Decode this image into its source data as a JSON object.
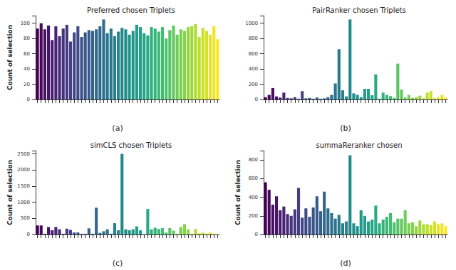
{
  "chart_data": [
    {
      "type": "bar",
      "title": "Preferred chosen Triplets",
      "subtitle": "(a)",
      "ylabel": "Count of selection",
      "categories": [
        null,
        null,
        null,
        null,
        null,
        null,
        null,
        null,
        null,
        null,
        null,
        null,
        null,
        null,
        null,
        null,
        null,
        null,
        null,
        null,
        null,
        null,
        null,
        null,
        null,
        null,
        null,
        null,
        null,
        null,
        null,
        null,
        null,
        null,
        null,
        null,
        null,
        null,
        null,
        null,
        null,
        null,
        null,
        null,
        null,
        null,
        null,
        null,
        null,
        null
      ],
      "values": [
        93,
        100,
        92,
        97,
        78,
        96,
        83,
        93,
        98,
        76,
        88,
        96,
        82,
        88,
        91,
        90,
        92,
        96,
        105,
        87,
        93,
        83,
        89,
        94,
        92,
        85,
        90,
        98,
        95,
        87,
        84,
        95,
        93,
        89,
        95,
        80,
        91,
        97,
        85,
        92,
        90,
        95,
        96,
        99,
        82,
        94,
        90,
        85,
        96,
        79
      ],
      "colors": [
        "#440154",
        "#45085b",
        "#460f62",
        "#461668",
        "#471e6f",
        "#482575",
        "#462b79",
        "#45327d",
        "#443880",
        "#423f84",
        "#404587",
        "#3e4b88",
        "#3c508a",
        "#39568b",
        "#375b8c",
        "#34608d",
        "#32668d",
        "#306b8d",
        "#2e708e",
        "#2b758e",
        "#297a8e",
        "#277f8d",
        "#26848d",
        "#24898d",
        "#228e8c",
        "#21938b",
        "#219889",
        "#229d88",
        "#22a186",
        "#22a685",
        "#26ab82",
        "#2db07e",
        "#34b479",
        "#3bb975",
        "#42be71",
        "#4cc26c",
        "#57c565",
        "#62c95f",
        "#6dcd59",
        "#78d052",
        "#85d34a",
        "#93d641",
        "#a0d938",
        "#aedc30",
        "#bcdf27",
        "#c9e026",
        "#d6e226",
        "#e3e425",
        "#f0e525",
        "#fde725"
      ],
      "ylim": [
        0,
        110
      ],
      "yticks": [
        0,
        20,
        40,
        60,
        80,
        100
      ],
      "grid": false,
      "tick_labels": "y"
    },
    {
      "type": "bar",
      "title": "PairRanker chosen Triplets",
      "subtitle": "(b)",
      "categories": [
        null,
        null,
        null,
        null,
        null,
        null,
        null,
        null,
        null,
        null,
        null,
        null,
        null,
        null,
        null,
        null,
        null,
        null,
        null,
        null,
        null,
        null,
        null,
        null,
        null,
        null,
        null,
        null,
        null,
        null,
        null,
        null,
        null,
        null,
        null,
        null,
        null,
        null,
        null,
        null,
        null,
        null,
        null,
        null,
        null,
        null,
        null,
        null,
        null,
        null
      ],
      "values": [
        30,
        60,
        150,
        40,
        25,
        90,
        20,
        15,
        30,
        10,
        110,
        15,
        20,
        10,
        25,
        10,
        15,
        30,
        60,
        210,
        660,
        120,
        40,
        1050,
        80,
        60,
        30,
        140,
        140,
        55,
        330,
        10,
        90,
        60,
        45,
        20,
        470,
        130,
        25,
        60,
        20,
        30,
        50,
        15,
        90,
        110,
        15,
        30,
        60,
        25
      ],
      "colors": [
        "#440154",
        "#45085b",
        "#460f62",
        "#461668",
        "#471e6f",
        "#482575",
        "#462b79",
        "#45327d",
        "#443880",
        "#423f84",
        "#404587",
        "#3e4b88",
        "#3c508a",
        "#39568b",
        "#375b8c",
        "#34608d",
        "#32668d",
        "#306b8d",
        "#2e708e",
        "#2b758e",
        "#297a8e",
        "#277f8d",
        "#26848d",
        "#24898d",
        "#228e8c",
        "#21938b",
        "#219889",
        "#229d88",
        "#22a186",
        "#22a685",
        "#26ab82",
        "#2db07e",
        "#34b479",
        "#3bb975",
        "#42be71",
        "#4cc26c",
        "#57c565",
        "#62c95f",
        "#6dcd59",
        "#78d052",
        "#85d34a",
        "#93d641",
        "#a0d938",
        "#aedc30",
        "#bcdf27",
        "#c9e026",
        "#d6e226",
        "#e3e425",
        "#f0e525",
        "#fde725"
      ],
      "ylim": [
        0,
        1100
      ],
      "yticks": [
        0,
        200,
        400,
        600,
        800,
        1000
      ],
      "grid": false,
      "tick_labels": "y"
    },
    {
      "type": "bar",
      "title": "simCLS chosen Triplets",
      "subtitle": "(c)",
      "ylabel": "Count of selection",
      "categories": [
        null,
        null,
        null,
        null,
        null,
        null,
        null,
        null,
        null,
        null,
        null,
        null,
        null,
        null,
        null,
        null,
        null,
        null,
        null,
        null,
        null,
        null,
        null,
        null,
        null,
        null,
        null,
        null,
        null,
        null,
        null,
        null,
        null,
        null,
        null,
        null,
        null,
        null,
        null,
        null,
        null,
        null,
        null,
        null,
        null,
        null,
        null,
        null,
        null,
        null
      ],
      "values": [
        280,
        280,
        20,
        230,
        130,
        230,
        160,
        20,
        180,
        140,
        60,
        60,
        20,
        20,
        190,
        20,
        830,
        50,
        100,
        160,
        25,
        350,
        130,
        2500,
        160,
        130,
        160,
        250,
        130,
        10,
        790,
        160,
        210,
        170,
        200,
        60,
        200,
        120,
        20,
        230,
        320,
        160,
        20,
        170,
        30,
        60,
        20,
        60,
        20,
        10
      ],
      "colors": [
        "#440154",
        "#45085b",
        "#460f62",
        "#461668",
        "#471e6f",
        "#482575",
        "#462b79",
        "#45327d",
        "#443880",
        "#423f84",
        "#404587",
        "#3e4b88",
        "#3c508a",
        "#39568b",
        "#375b8c",
        "#34608d",
        "#32668d",
        "#306b8d",
        "#2e708e",
        "#2b758e",
        "#297a8e",
        "#277f8d",
        "#26848d",
        "#24898d",
        "#228e8c",
        "#21938b",
        "#219889",
        "#229d88",
        "#22a186",
        "#22a685",
        "#26ab82",
        "#2db07e",
        "#34b479",
        "#3bb975",
        "#42be71",
        "#4cc26c",
        "#57c565",
        "#62c95f",
        "#6dcd59",
        "#78d052",
        "#85d34a",
        "#93d641",
        "#a0d938",
        "#aedc30",
        "#bcdf27",
        "#c9e026",
        "#d6e226",
        "#e3e425",
        "#f0e525",
        "#fde725"
      ],
      "ylim": [
        0,
        2600
      ],
      "yticks": [
        0,
        500,
        1000,
        1500,
        2000,
        2500
      ],
      "grid": false,
      "tick_labels": "y"
    },
    {
      "type": "bar",
      "title": "summaReranker chosen",
      "subtitle": "(d)",
      "ylabel": "Count of selection",
      "categories": [
        null,
        null,
        null,
        null,
        null,
        null,
        null,
        null,
        null,
        null,
        null,
        null,
        null,
        null,
        null,
        null,
        null,
        null,
        null,
        null,
        null,
        null,
        null,
        null,
        null,
        null,
        null,
        null,
        null,
        null,
        null,
        null,
        null,
        null,
        null,
        null,
        null,
        null,
        null,
        null,
        null,
        null,
        null,
        null,
        null,
        null,
        null,
        null,
        null,
        null
      ],
      "values": [
        560,
        480,
        320,
        410,
        260,
        300,
        220,
        200,
        270,
        500,
        180,
        280,
        190,
        290,
        410,
        250,
        460,
        280,
        230,
        170,
        210,
        120,
        140,
        850,
        120,
        90,
        260,
        200,
        140,
        160,
        310,
        120,
        160,
        190,
        230,
        130,
        170,
        170,
        260,
        120,
        130,
        90,
        150,
        110,
        110,
        100,
        140,
        110,
        120,
        90
      ],
      "colors": [
        "#440154",
        "#45085b",
        "#460f62",
        "#461668",
        "#471e6f",
        "#482575",
        "#462b79",
        "#45327d",
        "#443880",
        "#423f84",
        "#404587",
        "#3e4b88",
        "#3c508a",
        "#39568b",
        "#375b8c",
        "#34608d",
        "#32668d",
        "#306b8d",
        "#2e708e",
        "#2b758e",
        "#297a8e",
        "#277f8d",
        "#26848d",
        "#24898d",
        "#228e8c",
        "#21938b",
        "#219889",
        "#229d88",
        "#22a186",
        "#22a685",
        "#26ab82",
        "#2db07e",
        "#34b479",
        "#3bb975",
        "#42be71",
        "#4cc26c",
        "#57c565",
        "#62c95f",
        "#6dcd59",
        "#78d052",
        "#85d34a",
        "#93d641",
        "#a0d938",
        "#aedc30",
        "#bcdf27",
        "#c9e026",
        "#d6e226",
        "#e3e425",
        "#f0e525",
        "#fde725"
      ],
      "ylim": [
        0,
        900
      ],
      "yticks": [
        0,
        200,
        400,
        600,
        800
      ],
      "grid": false,
      "tick_labels": "y"
    }
  ]
}
